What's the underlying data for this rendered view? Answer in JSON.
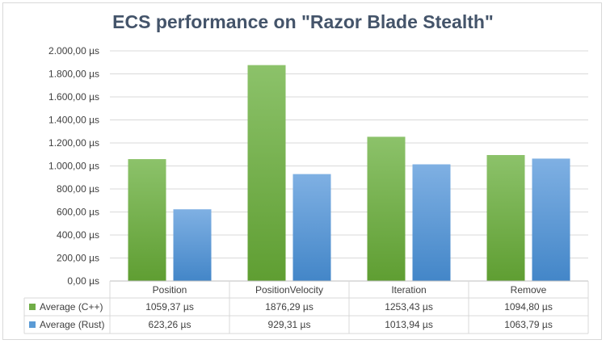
{
  "chart_data": {
    "type": "bar",
    "title": "ECS performance on \"Razor Blade Stealth\"",
    "categories": [
      "Position",
      "PositionVelocity",
      "Iteration",
      "Remove"
    ],
    "series": [
      {
        "name": "Average (C++)",
        "color": "#70ad47",
        "values": [
          1059.37,
          1876.29,
          1253.43,
          1094.8
        ],
        "labels": [
          "1059,37 µs",
          "1876,29 µs",
          "1253,43 µs",
          "1094,80 µs"
        ]
      },
      {
        "name": "Average (Rust)",
        "color": "#5b9bd5",
        "values": [
          623.26,
          929.31,
          1013.94,
          1063.79
        ],
        "labels": [
          "623,26 µs",
          "929,31 µs",
          "1013,94 µs",
          "1063,79 µs"
        ]
      }
    ],
    "ylim": [
      0,
      2000
    ],
    "y_ticks": [
      0,
      200,
      400,
      600,
      800,
      1000,
      1200,
      1400,
      1600,
      1800,
      2000
    ],
    "y_tick_labels": [
      "0,00 µs",
      "200,00 µs",
      "400,00 µs",
      "600,00 µs",
      "800,00 µs",
      "1.000,00 µs",
      "1.200,00 µs",
      "1.400,00 µs",
      "1.600,00 µs",
      "1.800,00 µs",
      "2.000,00 µs"
    ],
    "grid": true,
    "legend": "data-table"
  }
}
